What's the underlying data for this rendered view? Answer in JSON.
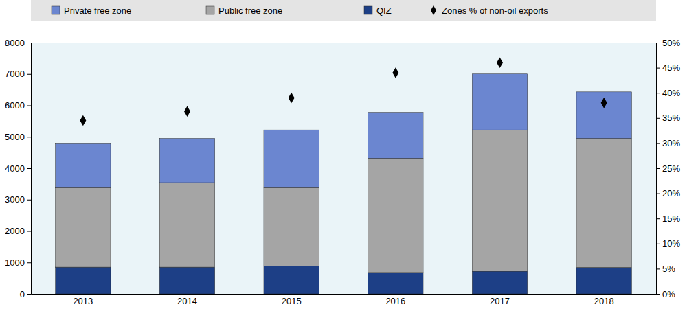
{
  "chart_data": {
    "type": "bar",
    "stacked": true,
    "grid": false,
    "legend": "top",
    "categories": [
      "2013",
      "2014",
      "2015",
      "2016",
      "2017",
      "2018"
    ],
    "series": [
      {
        "name": "Private free zone",
        "color": "#6b86d0",
        "values": [
          1420,
          1410,
          1840,
          1460,
          1780,
          1480
        ]
      },
      {
        "name": "Public free zone",
        "color": "#a5a5a5",
        "values": [
          2530,
          2690,
          2500,
          3640,
          4500,
          4110
        ]
      },
      {
        "name": "QIZ",
        "color": "#1d3f86",
        "values": [
          850,
          850,
          880,
          680,
          720,
          840
        ]
      },
      {
        "name": "Zones % of non-oil exports",
        "type": "scatter",
        "axis": "y2",
        "marker": "diamond",
        "color": "#000000",
        "values": [
          34.5,
          36.3,
          39,
          44,
          46,
          38
        ]
      }
    ],
    "ylim": [
      0,
      8000
    ],
    "yticks": [
      0,
      1000,
      2000,
      3000,
      4000,
      5000,
      6000,
      7000,
      8000
    ],
    "y2lim": [
      0,
      50
    ],
    "y2ticks": [
      {
        "value": 0,
        "label": "0%"
      },
      {
        "value": 5,
        "label": "5%"
      },
      {
        "value": 10,
        "label": "10%"
      },
      {
        "value": 15,
        "label": "15%"
      },
      {
        "value": 20,
        "label": "20%"
      },
      {
        "value": 25,
        "label": "25%"
      },
      {
        "value": 30,
        "label": "30%"
      },
      {
        "value": 35,
        "label": "35%"
      },
      {
        "value": 40,
        "label": "40%"
      },
      {
        "value": 45,
        "label": "45%"
      },
      {
        "value": 50,
        "label": "50%"
      }
    ]
  }
}
